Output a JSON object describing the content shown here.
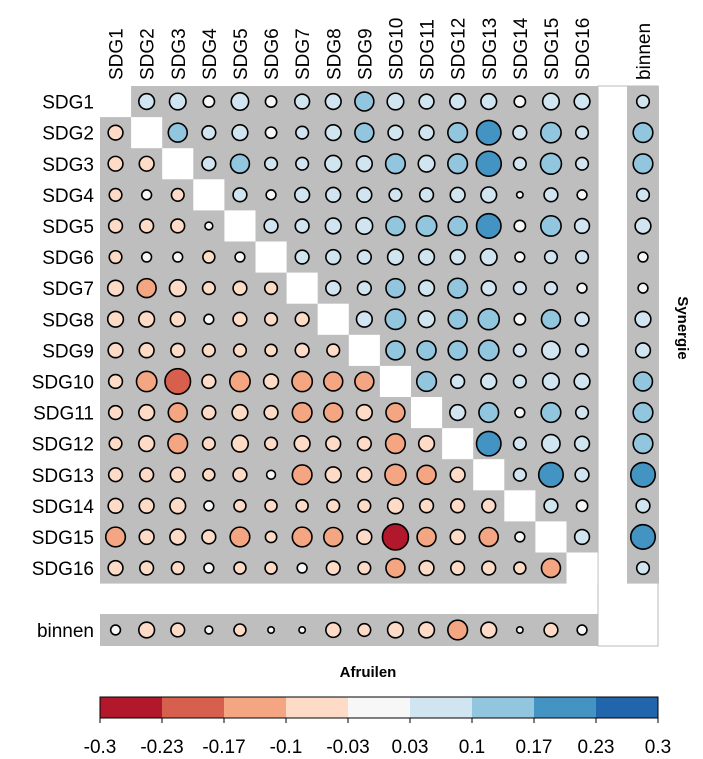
{
  "chart_data": {
    "type": "heatmap",
    "subtype": "correlation-circle-matrix",
    "labels": [
      "SDG1",
      "SDG2",
      "SDG3",
      "SDG4",
      "SDG5",
      "SDG6",
      "SDG7",
      "SDG8",
      "SDG9",
      "SDG10",
      "SDG11",
      "SDG12",
      "SDG13",
      "SDG14",
      "SDG15",
      "SDG16"
    ],
    "extra_label": "binnen",
    "upper_title": "Synergie",
    "lower_title": "Afruilen",
    "matrix": [
      [
        null,
        0.07,
        0.08,
        0.03,
        0.09,
        0.03,
        0.06,
        0.07,
        0.11,
        0.08,
        0.06,
        0.07,
        0.07,
        0.03,
        0.08,
        0.07
      ],
      [
        -0.06,
        null,
        0.11,
        0.05,
        0.07,
        0.03,
        0.04,
        0.07,
        0.11,
        0.06,
        0.06,
        0.12,
        0.2,
        0.05,
        0.13,
        0.04
      ],
      [
        -0.06,
        -0.06,
        null,
        0.05,
        0.11,
        0.04,
        0.04,
        0.08,
        0.07,
        0.12,
        0.08,
        0.12,
        0.21,
        0.04,
        0.14,
        0.04
      ],
      [
        -0.04,
        -0.02,
        -0.04,
        null,
        0.05,
        0.02,
        0.06,
        0.06,
        0.06,
        0.04,
        0.05,
        0.06,
        0.07,
        0.005,
        0.05,
        0.02
      ],
      [
        -0.05,
        -0.05,
        -0.05,
        -0.01,
        null,
        0.05,
        0.05,
        0.07,
        0.08,
        0.11,
        0.13,
        0.11,
        0.2,
        0.03,
        0.13,
        0.06
      ],
      [
        -0.04,
        -0.02,
        -0.02,
        -0.035,
        -0.02,
        null,
        0.05,
        0.06,
        0.05,
        0.07,
        0.07,
        0.06,
        0.08,
        0.02,
        0.04,
        0.04
      ],
      [
        -0.07,
        -0.11,
        -0.08,
        -0.04,
        -0.05,
        -0.04,
        null,
        0.06,
        0.05,
        0.11,
        0.07,
        0.12,
        0.06,
        0.04,
        0.04,
        0.02
      ],
      [
        -0.07,
        -0.07,
        -0.06,
        -0.02,
        -0.05,
        -0.04,
        -0.05,
        null,
        0.07,
        0.13,
        0.08,
        0.11,
        0.14,
        0.03,
        0.11,
        0.05
      ],
      [
        -0.06,
        -0.06,
        -0.05,
        -0.04,
        -0.04,
        -0.035,
        -0.05,
        -0.04,
        null,
        0.11,
        0.11,
        0.11,
        0.13,
        0.04,
        0.1,
        0.04
      ],
      [
        -0.05,
        -0.13,
        -0.22,
        -0.05,
        -0.13,
        -0.06,
        -0.13,
        -0.11,
        -0.11,
        null,
        0.12,
        0.05,
        0.07,
        0.04,
        0.08,
        0.07
      ],
      [
        -0.05,
        -0.07,
        -0.11,
        -0.05,
        -0.07,
        -0.05,
        -0.12,
        -0.11,
        -0.07,
        -0.11,
        null,
        0.07,
        0.12,
        0.02,
        0.12,
        0.04
      ],
      [
        -0.04,
        -0.07,
        -0.12,
        -0.04,
        -0.08,
        -0.04,
        -0.07,
        -0.06,
        -0.05,
        -0.12,
        -0.07,
        null,
        0.2,
        0.04,
        0.1,
        0.06
      ],
      [
        -0.05,
        -0.05,
        -0.06,
        -0.035,
        -0.05,
        -0.015,
        -0.12,
        -0.07,
        -0.06,
        -0.14,
        -0.11,
        -0.06,
        null,
        0.04,
        0.2,
        0.05
      ],
      [
        -0.06,
        -0.06,
        -0.07,
        -0.02,
        -0.035,
        -0.035,
        -0.035,
        -0.04,
        -0.04,
        -0.07,
        -0.05,
        -0.05,
        -0.05,
        null,
        0.05,
        0.03
      ],
      [
        -0.12,
        -0.06,
        -0.07,
        -0.05,
        -0.12,
        -0.03,
        -0.12,
        -0.11,
        -0.06,
        -0.23,
        -0.11,
        -0.06,
        -0.11,
        -0.02,
        null,
        0.06
      ],
      [
        -0.06,
        -0.05,
        -0.04,
        -0.02,
        -0.035,
        -0.035,
        -0.02,
        -0.05,
        -0.04,
        -0.11,
        -0.06,
        -0.05,
        -0.05,
        -0.035,
        -0.11,
        null
      ]
    ],
    "binnen_row": [
      -0.02,
      -0.07,
      -0.05,
      -0.01,
      -0.035,
      -0.005,
      -0.005,
      -0.06,
      -0.04,
      -0.07,
      -0.07,
      -0.12,
      -0.07,
      -0.005,
      -0.05,
      -0.02
    ],
    "binnen_column": [
      0.04,
      0.12,
      0.12,
      0.04,
      0.07,
      0.02,
      0.02,
      0.07,
      0.06,
      0.11,
      0.12,
      0.12,
      0.2,
      0.05,
      0.2,
      0.04
    ],
    "colorbar": {
      "ticks": [
        "-0.3",
        "-0.23",
        "-0.17",
        "-0.1",
        "-0.03",
        "0.03",
        "0.1",
        "0.17",
        "0.23",
        "0.3"
      ],
      "breaks": [
        -0.3,
        -0.23,
        -0.17,
        -0.1,
        -0.03,
        0.03,
        0.1,
        0.17,
        0.23,
        0.3
      ],
      "colors": [
        "#b2182b",
        "#d6604d",
        "#f4a582",
        "#fddbc7",
        "#f7f7f7",
        "#d1e5f0",
        "#92c5de",
        "#4393c3",
        "#2166ac"
      ]
    },
    "range": [
      -0.3,
      0.3
    ],
    "background_color": "#bebebe"
  }
}
